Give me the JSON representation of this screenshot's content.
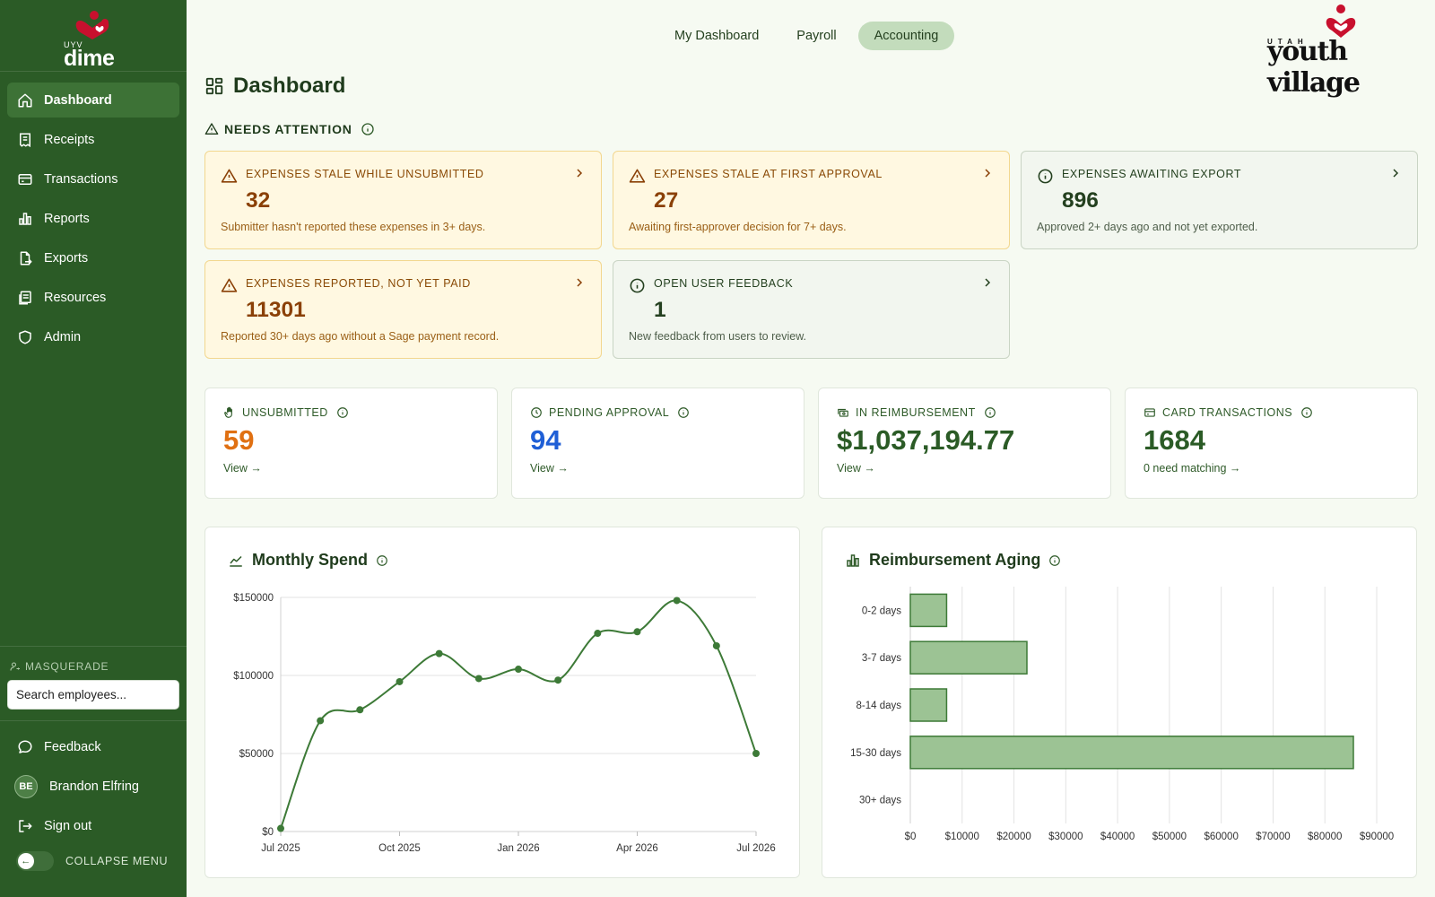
{
  "brand": {
    "small": "UYV",
    "name": "dime"
  },
  "sidebar": {
    "items": [
      {
        "label": "Dashboard",
        "icon": "home-icon",
        "active": true
      },
      {
        "label": "Receipts",
        "icon": "receipt-icon"
      },
      {
        "label": "Transactions",
        "icon": "card-icon"
      },
      {
        "label": "Reports",
        "icon": "bar-chart-icon"
      },
      {
        "label": "Exports",
        "icon": "file-export-icon"
      },
      {
        "label": "Resources",
        "icon": "book-icon"
      },
      {
        "label": "Admin",
        "icon": "shield-icon"
      }
    ],
    "masquerade": {
      "label": "MASQUERADE",
      "placeholder": "Search employees..."
    },
    "feedback": "Feedback",
    "user": {
      "initials": "BE",
      "name": "Brandon Elfring"
    },
    "sign_out": "Sign out",
    "collapse": "COLLAPSE MENU"
  },
  "topnav": {
    "tabs": [
      "My Dashboard",
      "Payroll",
      "Accounting"
    ],
    "active": "Accounting"
  },
  "org_logo": {
    "small": "UTAH",
    "name": "youth village"
  },
  "page": {
    "title": "Dashboard"
  },
  "needs_attention": {
    "heading": "NEEDS ATTENTION",
    "cards": [
      {
        "title": "EXPENSES STALE WHILE UNSUBMITTED",
        "value": "32",
        "desc": "Submitter hasn't reported these expenses in 3+ days.",
        "kind": "warning"
      },
      {
        "title": "EXPENSES STALE AT FIRST APPROVAL",
        "value": "27",
        "desc": "Awaiting first-approver decision for 7+ days.",
        "kind": "warning"
      },
      {
        "title": "EXPENSES AWAITING EXPORT",
        "value": "896",
        "desc": "Approved 2+ days ago and not yet exported.",
        "kind": "info"
      },
      {
        "title": "EXPENSES REPORTED, NOT YET PAID",
        "value": "11301",
        "desc": "Reported 30+ days ago without a Sage payment record.",
        "kind": "warning"
      },
      {
        "title": "OPEN USER FEEDBACK",
        "value": "1",
        "desc": "New feedback from users to review.",
        "kind": "info"
      }
    ]
  },
  "stats": [
    {
      "label": "UNSUBMITTED",
      "value": "59",
      "link": "View →",
      "color": "#e07012",
      "icon": "hand-icon"
    },
    {
      "label": "PENDING APPROVAL",
      "value": "94",
      "link": "View →",
      "color": "#1f5fd6",
      "icon": "clock-icon"
    },
    {
      "label": "IN REIMBURSEMENT",
      "value": "$1,037,194.77",
      "link": "View →",
      "color": "#2b5b26",
      "icon": "money-icon"
    },
    {
      "label": "CARD TRANSACTIONS",
      "value": "1684",
      "link": "0 need matching →",
      "color": "#2b5b26",
      "icon": "card-icon"
    }
  ],
  "colors": {
    "sidebar": "#2b5b26",
    "accent": "#3d7a37",
    "warning": "#8a4006",
    "bar_fill": "#9cc394"
  },
  "chart_data": [
    {
      "type": "line",
      "title": "Monthly Spend",
      "x": [
        "Jul 2025",
        "Aug 2025",
        "Sep 2025",
        "Oct 2025",
        "Nov 2025",
        "Dec 2025",
        "Jan 2026",
        "Feb 2026",
        "Mar 2026",
        "Apr 2026",
        "May 2026",
        "Jun 2026",
        "Jul 2026"
      ],
      "x_ticks": [
        "Jul 2025",
        "Oct 2025",
        "Jan 2026",
        "Apr 2026",
        "Jul 2026"
      ],
      "y_ticks": [
        "$0",
        "$50000",
        "$100000",
        "$150000"
      ],
      "ylim": [
        0,
        150000
      ],
      "series": [
        {
          "values": [
            2000,
            71000,
            78000,
            96000,
            114000,
            98000,
            104000,
            97000,
            127000,
            128000,
            148000,
            119000,
            50000
          ]
        }
      ],
      "grid": "horizontal"
    },
    {
      "type": "bar",
      "orientation": "horizontal",
      "title": "Reimbursement Aging",
      "categories": [
        "0-2 days",
        "3-7 days",
        "8-14 days",
        "15-30 days",
        "30+ days"
      ],
      "values": [
        7000,
        22500,
        7000,
        85500,
        0
      ],
      "x_ticks": [
        "$0",
        "$10000",
        "$20000",
        "$30000",
        "$40000",
        "$50000",
        "$60000",
        "$70000",
        "$80000",
        "$90000"
      ],
      "xlim": [
        0,
        90000
      ],
      "grid": "vertical"
    }
  ]
}
